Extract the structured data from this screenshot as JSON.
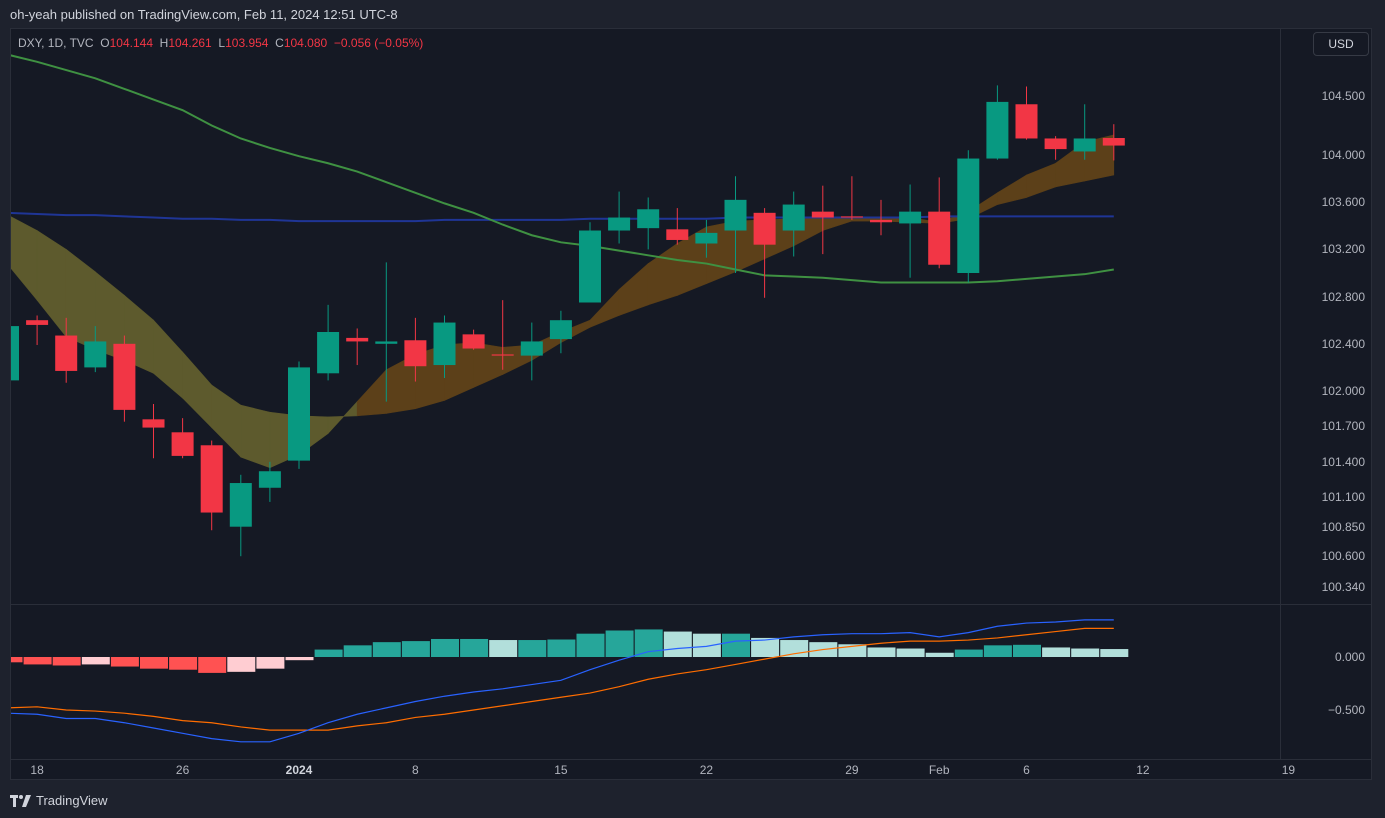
{
  "header": {
    "published": "oh-yeah published on TradingView.com, Feb 11, 2024 12:51 UTC-8"
  },
  "legend": {
    "symbol": "DXY, 1D, TVC",
    "o_label": "O",
    "o_value": "104.144",
    "h_label": "H",
    "h_value": "104.261",
    "l_label": "L",
    "l_value": "103.954",
    "c_label": "C",
    "c_value": "104.080",
    "change": "−0.056 (−0.05%)"
  },
  "currency_button": "USD",
  "footer": {
    "brand": "TradingView"
  },
  "colors": {
    "up": "#089981",
    "down": "#f23645",
    "sma": "#3f9142",
    "long_ma": "#1f3596",
    "ribbon_bear": "#5d5a2d",
    "ribbon_bull": "#5c4019",
    "macd": "#2962ff",
    "signal": "#ff6d00",
    "hist_up_strong": "#26a69a",
    "hist_up_weak": "#b2dfdb",
    "hist_down_strong": "#ff5252",
    "hist_down_weak": "#ffcdd2"
  },
  "chart_data": {
    "type": "candlestick",
    "symbol": "DXY",
    "interval": "1D",
    "price_range": [
      100.2,
      104.95
    ],
    "price_ticks": [
      "104.500",
      "104.000",
      "103.600",
      "103.200",
      "102.800",
      "102.400",
      "102.000",
      "101.700",
      "101.400",
      "101.100",
      "100.850",
      "100.600",
      "100.340"
    ],
    "time_ticks": [
      {
        "label": "18",
        "bar": 1
      },
      {
        "label": "26",
        "bar": 6
      },
      {
        "label": "2024",
        "bar": 10,
        "bold": true
      },
      {
        "label": "8",
        "bar": 14
      },
      {
        "label": "15",
        "bar": 19
      },
      {
        "label": "22",
        "bar": 24
      },
      {
        "label": "29",
        "bar": 29
      },
      {
        "label": "Feb",
        "bar": 32
      },
      {
        "label": "6",
        "bar": 35
      },
      {
        "label": "12",
        "bar": 39
      },
      {
        "label": "19",
        "bar": 44
      }
    ],
    "ohlc": [
      [
        102.09,
        102.55,
        102.09,
        102.55
      ],
      [
        102.6,
        102.64,
        102.39,
        102.56
      ],
      [
        102.47,
        102.62,
        102.07,
        102.17
      ],
      [
        102.2,
        102.55,
        102.16,
        102.42
      ],
      [
        102.4,
        102.47,
        101.74,
        101.84
      ],
      [
        101.76,
        101.89,
        101.43,
        101.69
      ],
      [
        101.65,
        101.77,
        101.43,
        101.45
      ],
      [
        101.54,
        101.58,
        100.82,
        100.97
      ],
      [
        100.85,
        101.29,
        100.6,
        101.22
      ],
      [
        101.18,
        101.4,
        101.06,
        101.32
      ],
      [
        101.41,
        102.25,
        101.34,
        102.2
      ],
      [
        102.15,
        102.73,
        102.09,
        102.5
      ],
      [
        102.45,
        102.53,
        102.22,
        102.42
      ],
      [
        102.4,
        103.09,
        101.91,
        102.42
      ],
      [
        102.43,
        102.62,
        102.08,
        102.21
      ],
      [
        102.22,
        102.64,
        102.11,
        102.58
      ],
      [
        102.48,
        102.52,
        102.35,
        102.36
      ],
      [
        102.31,
        102.77,
        102.18,
        102.3
      ],
      [
        102.3,
        102.58,
        102.09,
        102.42
      ],
      [
        102.44,
        102.68,
        102.32,
        102.6
      ],
      [
        102.75,
        103.43,
        102.75,
        103.36
      ],
      [
        103.36,
        103.69,
        103.25,
        103.47
      ],
      [
        103.38,
        103.64,
        103.2,
        103.54
      ],
      [
        103.37,
        103.55,
        103.24,
        103.28
      ],
      [
        103.25,
        103.45,
        103.13,
        103.34
      ],
      [
        103.36,
        103.82,
        103.0,
        103.62
      ],
      [
        103.51,
        103.55,
        102.79,
        103.24
      ],
      [
        103.36,
        103.69,
        103.14,
        103.58
      ],
      [
        103.52,
        103.74,
        103.16,
        103.47
      ],
      [
        103.48,
        103.82,
        103.45,
        103.47
      ],
      [
        103.45,
        103.62,
        103.32,
        103.43
      ],
      [
        103.42,
        103.75,
        102.96,
        103.52
      ],
      [
        103.52,
        103.81,
        103.04,
        103.07
      ],
      [
        103.0,
        104.04,
        102.92,
        103.97
      ],
      [
        103.97,
        104.59,
        103.96,
        104.45
      ],
      [
        104.43,
        104.58,
        104.13,
        104.14
      ],
      [
        104.14,
        104.16,
        103.96,
        104.05
      ],
      [
        104.03,
        104.43,
        103.96,
        104.14
      ],
      [
        104.144,
        104.261,
        103.954,
        104.08
      ]
    ],
    "ema_fast": [
      103.07,
      102.77,
      102.46,
      102.35,
      102.26,
      102.15,
      101.94,
      101.69,
      101.44,
      101.35,
      101.46,
      101.64,
      101.91,
      102.18,
      102.31,
      102.39,
      102.41,
      102.37,
      102.39,
      102.5,
      102.6,
      102.86,
      103.08,
      103.25,
      103.39,
      103.44,
      103.45,
      103.46,
      103.47,
      103.47,
      103.47,
      103.47,
      103.43,
      103.52,
      103.68,
      103.83,
      103.93,
      104.11,
      104.17
    ],
    "ema_slow": [
      103.49,
      103.36,
      103.2,
      103.01,
      102.81,
      102.6,
      102.33,
      102.05,
      101.88,
      101.82,
      101.79,
      101.78,
      101.79,
      101.81,
      101.85,
      101.92,
      102.03,
      102.14,
      102.26,
      102.41,
      102.54,
      102.64,
      102.73,
      102.81,
      102.91,
      103.01,
      103.12,
      103.23,
      103.36,
      103.44,
      103.44,
      103.43,
      103.42,
      103.46,
      103.58,
      103.64,
      103.73,
      103.78,
      103.83
    ],
    "sma": [
      104.85,
      104.79,
      104.72,
      104.65,
      104.56,
      104.47,
      104.38,
      104.25,
      104.14,
      104.06,
      103.99,
      103.93,
      103.86,
      103.77,
      103.68,
      103.59,
      103.51,
      103.41,
      103.32,
      103.26,
      103.23,
      103.19,
      103.15,
      103.11,
      103.08,
      103.03,
      102.98,
      102.97,
      102.96,
      102.94,
      102.92,
      102.92,
      102.92,
      102.92,
      102.93,
      102.95,
      102.97,
      102.99,
      103.03
    ],
    "long_ma": [
      103.51,
      103.5,
      103.49,
      103.49,
      103.48,
      103.47,
      103.46,
      103.46,
      103.45,
      103.45,
      103.44,
      103.44,
      103.44,
      103.44,
      103.44,
      103.45,
      103.45,
      103.45,
      103.45,
      103.45,
      103.46,
      103.46,
      103.46,
      103.46,
      103.46,
      103.47,
      103.47,
      103.47,
      103.47,
      103.47,
      103.47,
      103.47,
      103.48,
      103.48,
      103.48,
      103.48,
      103.48,
      103.48,
      103.48
    ],
    "macd_ticks": [
      "0.000",
      "−0.500"
    ],
    "macd_line": [
      -0.53,
      -0.54,
      -0.58,
      -0.58,
      -0.62,
      -0.67,
      -0.72,
      -0.77,
      -0.8,
      -0.8,
      -0.72,
      -0.62,
      -0.54,
      -0.48,
      -0.42,
      -0.37,
      -0.33,
      -0.3,
      -0.26,
      -0.22,
      -0.12,
      -0.03,
      0.05,
      0.08,
      0.1,
      0.15,
      0.16,
      0.19,
      0.21,
      0.22,
      0.22,
      0.23,
      0.19,
      0.23,
      0.29,
      0.32,
      0.33,
      0.35,
      0.35
    ],
    "signal_line": [
      -0.48,
      -0.47,
      -0.5,
      -0.51,
      -0.53,
      -0.56,
      -0.6,
      -0.62,
      -0.66,
      -0.69,
      -0.69,
      -0.69,
      -0.65,
      -0.62,
      -0.57,
      -0.54,
      -0.5,
      -0.46,
      -0.42,
      -0.38,
      -0.34,
      -0.28,
      -0.21,
      -0.16,
      -0.12,
      -0.07,
      -0.02,
      0.03,
      0.07,
      0.1,
      0.13,
      0.15,
      0.15,
      0.16,
      0.18,
      0.21,
      0.24,
      0.27,
      0.27
    ],
    "histogram": [
      -0.05,
      -0.07,
      -0.08,
      -0.07,
      -0.09,
      -0.11,
      -0.12,
      -0.15,
      -0.14,
      -0.11,
      -0.03,
      0.07,
      0.11,
      0.14,
      0.15,
      0.17,
      0.17,
      0.16,
      0.16,
      0.165,
      0.22,
      0.25,
      0.26,
      0.24,
      0.22,
      0.22,
      0.18,
      0.16,
      0.14,
      0.12,
      0.09,
      0.08,
      0.04,
      0.07,
      0.11,
      0.115,
      0.09,
      0.08,
      0.075
    ]
  }
}
